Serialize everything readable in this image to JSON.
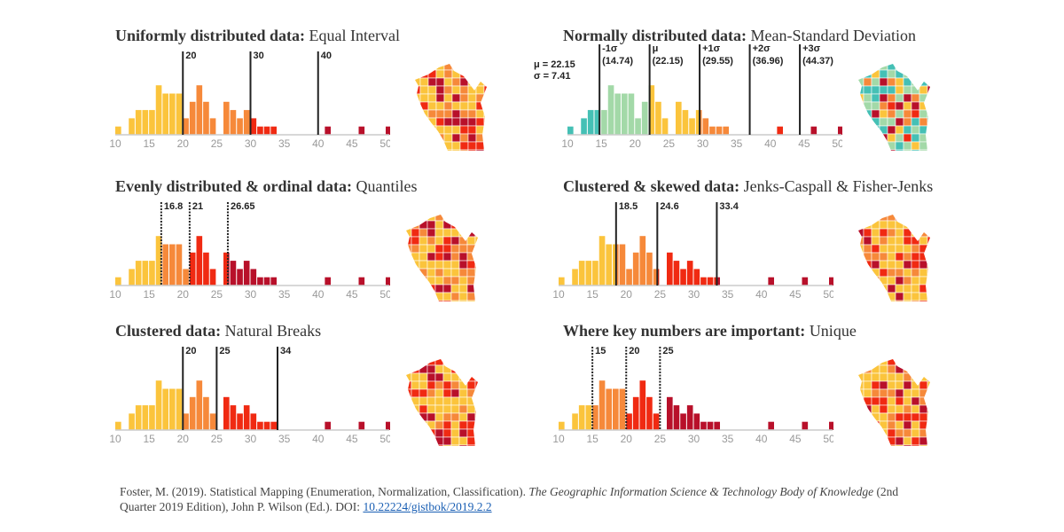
{
  "colors": {
    "yellow": "#fbc43c",
    "orange": "#f6893a",
    "red": "#f02a12",
    "darkred": "#b8102a",
    "teal": "#45c0b5",
    "green": "#a3d9a8",
    "axis": "#ccc",
    "tick": "#999"
  },
  "histogram": {
    "values": [
      [
        10,
        1
      ],
      [
        12,
        2
      ],
      [
        13,
        3
      ],
      [
        14,
        3
      ],
      [
        15,
        3
      ],
      [
        16,
        6
      ],
      [
        17,
        5
      ],
      [
        18,
        5
      ],
      [
        19,
        5
      ],
      [
        20,
        2
      ],
      [
        21,
        4
      ],
      [
        22,
        6
      ],
      [
        23,
        4
      ],
      [
        24,
        2
      ],
      [
        26,
        4
      ],
      [
        27,
        3
      ],
      [
        28,
        2
      ],
      [
        29,
        3
      ],
      [
        30,
        2
      ],
      [
        31,
        1
      ],
      [
        32,
        1
      ],
      [
        33,
        1
      ],
      [
        41,
        1
      ],
      [
        46,
        1
      ],
      [
        50,
        1
      ]
    ],
    "ticks": [
      "10",
      "15",
      "20",
      "25",
      "30",
      "35",
      "40",
      "45",
      "50"
    ]
  },
  "panels": [
    {
      "title_bold": "Uniformly distributed data:",
      "title_rest": " Equal Interval",
      "breaks": [
        20,
        30,
        40
      ],
      "labels": [
        "20",
        "30",
        "40"
      ],
      "classes": [
        "yellow",
        "orange",
        "red",
        "darkred"
      ],
      "dotted": false
    },
    {
      "title_bold": "Normally distributed data:",
      "title_rest": " Mean-Standard Deviation",
      "breaks": [
        14.74,
        22.15,
        29.55,
        36.96,
        44.37
      ],
      "labels": [
        "-1σ",
        "μ",
        "+1σ",
        "+2σ",
        "+3σ"
      ],
      "sublabels": [
        "(14.74)",
        "(22.15)",
        "(29.55)",
        "(36.96)",
        "(44.37)"
      ],
      "classes": [
        "teal",
        "green",
        "yellow",
        "orange",
        "red",
        "darkred"
      ],
      "dotted": false,
      "stats": [
        "μ = 22.15",
        "σ = 7.41"
      ]
    },
    {
      "title_bold": "Evenly distributed & ordinal data:",
      "title_rest": " Quantiles",
      "breaks": [
        16.8,
        21,
        26.65
      ],
      "labels": [
        "16.8",
        "21",
        "26.65"
      ],
      "classes": [
        "yellow",
        "orange",
        "red",
        "darkred"
      ],
      "dotted": true
    },
    {
      "title_bold": "Clustered & skewed data:",
      "title_rest": " Jenks-Caspall & Fisher-Jenks",
      "breaks": [
        18.5,
        24.6,
        33.4
      ],
      "labels": [
        "18.5",
        "24.6",
        "33.4"
      ],
      "classes": [
        "yellow",
        "orange",
        "red",
        "darkred"
      ],
      "dotted": false
    },
    {
      "title_bold": "Clustered data:",
      "title_rest": " Natural Breaks",
      "breaks": [
        20,
        25,
        34
      ],
      "labels": [
        "20",
        "25",
        "34"
      ],
      "classes": [
        "yellow",
        "orange",
        "red",
        "darkred"
      ],
      "dotted": false
    },
    {
      "title_bold": "Where key numbers are important:",
      "title_rest": " Unique",
      "breaks": [
        15,
        20,
        25
      ],
      "labels": [
        "15",
        "20",
        "25"
      ],
      "classes": [
        "yellow",
        "orange",
        "red",
        "darkred"
      ],
      "dotted": true
    }
  ],
  "citation": {
    "text1": "Foster, M. (2019). Statistical Mapping (Enumeration, Normalization, Classification). ",
    "italic1": "The Geographic Information Science & Technology Body of Knowledge",
    "text2": " (2nd Quarter 2019 Edition), John P. Wilson (Ed.). DOI: ",
    "doi": "10.22224/gistbok/2019.2.2"
  }
}
